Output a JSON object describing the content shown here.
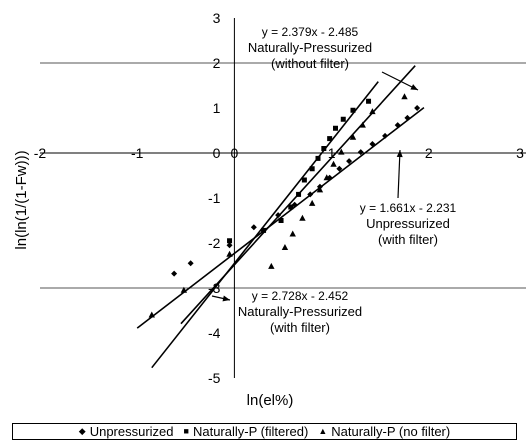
{
  "chart_data": {
    "type": "scatter",
    "xlabel": "ln(el%)",
    "ylabel": "ln(ln(1/(1-Fw)))",
    "xlim": [
      -2,
      3
    ],
    "ylim": [
      -5,
      3
    ],
    "x_ticks": [
      "-2",
      "-1",
      "0",
      "1",
      "2",
      "3"
    ],
    "y_ticks": [
      "-5",
      "-4",
      "-3",
      "-2",
      "-1",
      "0",
      "1",
      "2",
      "3"
    ],
    "horizontal_gridlines": [
      2,
      -3
    ],
    "legend_position": "bottom",
    "series": [
      {
        "name": "Unpressurized",
        "marker": "diamond",
        "points": [
          [
            -0.62,
            -2.68
          ],
          [
            -0.45,
            -2.45
          ],
          [
            -0.05,
            -2.05
          ],
          [
            0.2,
            -1.65
          ],
          [
            0.45,
            -1.38
          ],
          [
            0.62,
            -1.15
          ],
          [
            0.78,
            -0.92
          ],
          [
            0.88,
            -0.75
          ],
          [
            0.98,
            -0.55
          ],
          [
            1.08,
            -0.35
          ],
          [
            1.18,
            -0.18
          ],
          [
            1.3,
            0.02
          ],
          [
            1.42,
            0.2
          ],
          [
            1.55,
            0.38
          ],
          [
            1.68,
            0.62
          ],
          [
            1.78,
            0.78
          ],
          [
            1.88,
            1.0
          ]
        ]
      },
      {
        "name": "Naturally-P (filtered)",
        "marker": "square",
        "points": [
          [
            -0.05,
            -1.95
          ],
          [
            0.3,
            -1.72
          ],
          [
            0.48,
            -1.5
          ],
          [
            0.58,
            -1.2
          ],
          [
            0.66,
            -0.92
          ],
          [
            0.72,
            -0.6
          ],
          [
            0.8,
            -0.35
          ],
          [
            0.86,
            -0.12
          ],
          [
            0.92,
            0.1
          ],
          [
            0.98,
            0.32
          ],
          [
            1.04,
            0.55
          ],
          [
            1.12,
            0.75
          ],
          [
            1.22,
            0.95
          ],
          [
            1.38,
            1.15
          ]
        ]
      },
      {
        "name": "Naturally-P (no filter)",
        "marker": "triangle",
        "points": [
          [
            -0.85,
            -3.6
          ],
          [
            -0.52,
            -3.05
          ],
          [
            -0.05,
            -2.25
          ],
          [
            0.38,
            -2.52
          ],
          [
            0.52,
            -2.1
          ],
          [
            0.6,
            -1.8
          ],
          [
            0.7,
            -1.45
          ],
          [
            0.8,
            -1.12
          ],
          [
            0.88,
            -0.82
          ],
          [
            0.95,
            -0.55
          ],
          [
            1.02,
            -0.25
          ],
          [
            1.1,
            0.02
          ],
          [
            1.22,
            0.35
          ],
          [
            1.32,
            0.62
          ],
          [
            1.42,
            0.92
          ],
          [
            1.75,
            1.25
          ]
        ]
      }
    ],
    "trendlines": [
      {
        "slope": 2.379,
        "intercept": -2.485,
        "x_range": [
          -0.55,
          1.86
        ]
      },
      {
        "slope": 1.661,
        "intercept": -2.231,
        "x_range": [
          -1.0,
          1.95
        ]
      },
      {
        "slope": 2.728,
        "intercept": -2.452,
        "x_range": [
          -0.85,
          1.48
        ]
      }
    ],
    "annotations": [
      {
        "lines": [
          "y = 2.379x - 2.485",
          "Naturally-Pressurized",
          "(without filter)"
        ]
      },
      {
        "lines": [
          "y = 1.661x - 2.231",
          "Unpressurized",
          "(with filter)"
        ]
      },
      {
        "lines": [
          "y = 2.728x - 2.452",
          "Naturally-Pressurized",
          "(with filter)"
        ]
      }
    ]
  },
  "legend": {
    "items": [
      {
        "marker": "◆",
        "label": "Unpressurized"
      },
      {
        "marker": "■",
        "label": "Naturally-P (filtered)"
      },
      {
        "marker": "▲",
        "label": "Naturally-P (no filter)"
      }
    ]
  }
}
